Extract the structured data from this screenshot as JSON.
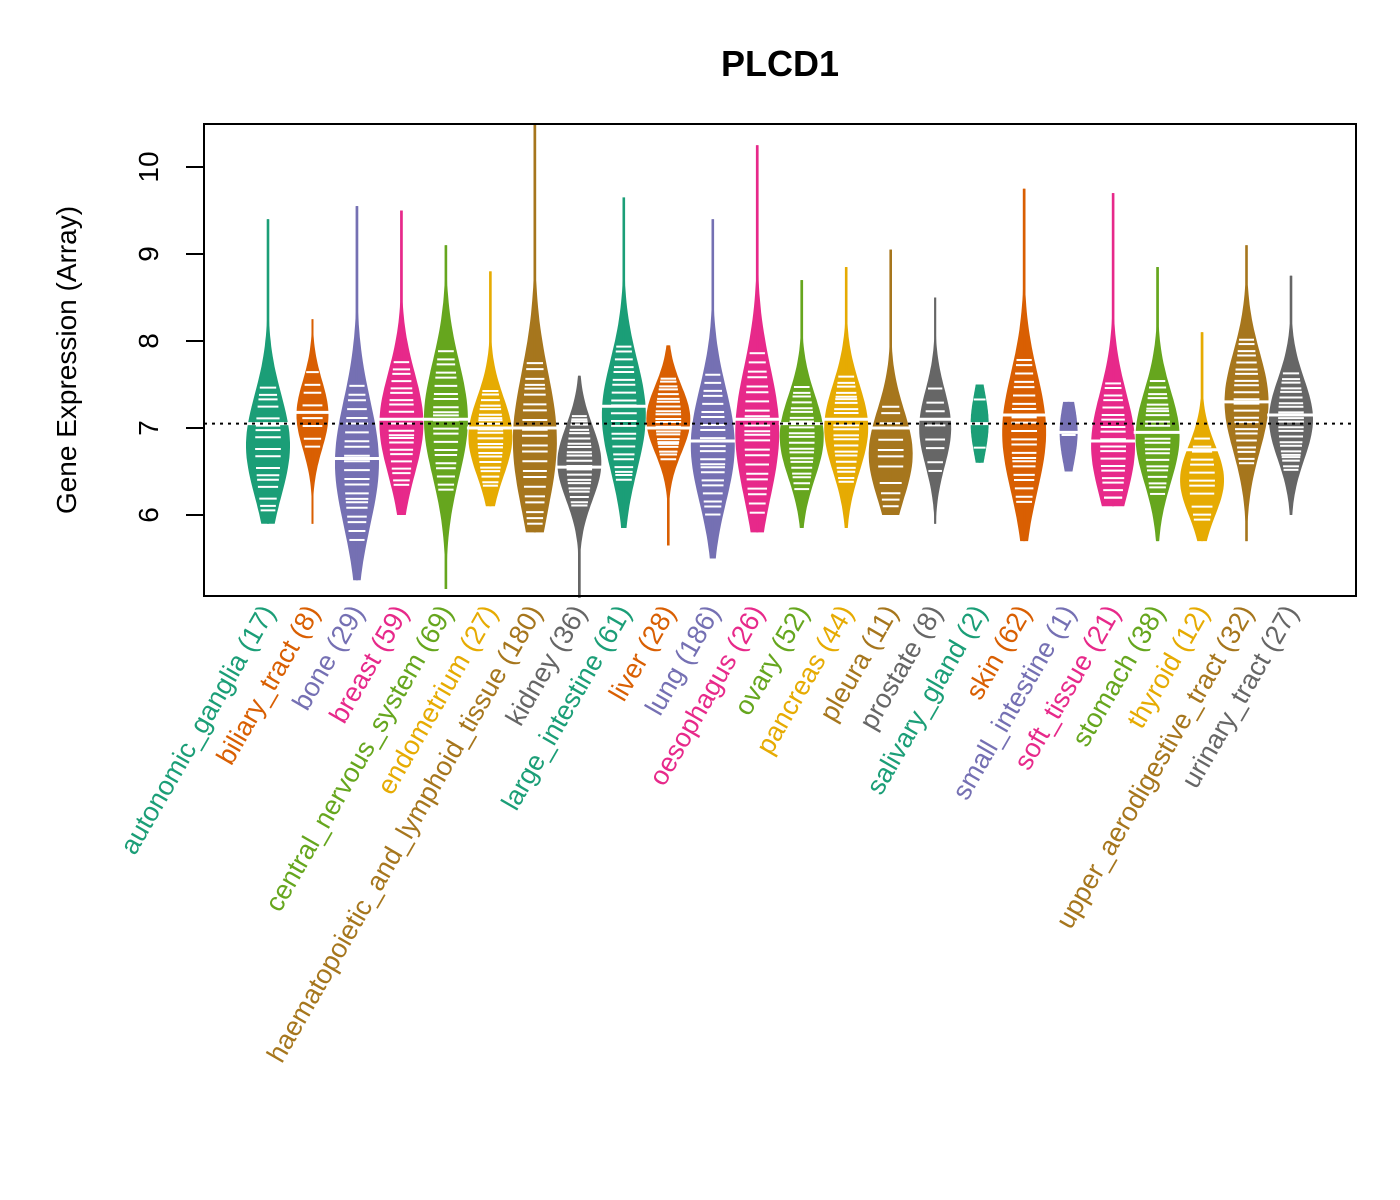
{
  "chart_data": {
    "type": "violin",
    "title": "PLCD1",
    "xlabel": "",
    "ylabel": "Gene Expression (Array)",
    "ylim": [
      5.05,
      10.5
    ],
    "yticks": [
      6,
      7,
      8,
      9,
      10
    ],
    "reference_line": 7.05,
    "grid": false,
    "legend": "none",
    "categories": [
      {
        "name": "autonomic_ganglia",
        "n": 17,
        "color": "#1B9E77",
        "median": 7.05,
        "min": 5.9,
        "max": 9.4,
        "mode": 6.8
      },
      {
        "name": "biliary_tract",
        "n": 8,
        "color": "#D95F02",
        "median": 7.18,
        "min": 5.9,
        "max": 8.25,
        "mode": 7.15
      },
      {
        "name": "bone",
        "n": 29,
        "color": "#7570B3",
        "median": 6.65,
        "min": 5.25,
        "max": 9.55,
        "mode": 6.6
      },
      {
        "name": "breast",
        "n": 59,
        "color": "#E7298A",
        "median": 7.1,
        "min": 6.0,
        "max": 9.5,
        "mode": 7.05
      },
      {
        "name": "central_nervous_system",
        "n": 69,
        "color": "#66A61E",
        "median": 7.1,
        "min": 5.15,
        "max": 9.1,
        "mode": 7.1
      },
      {
        "name": "endometrium",
        "n": 27,
        "color": "#E6AB02",
        "median": 7.0,
        "min": 6.1,
        "max": 8.8,
        "mode": 6.9
      },
      {
        "name": "haematopoietic_and_lymphoid_tissue",
        "n": 180,
        "color": "#A6761D",
        "median": 7.0,
        "min": 5.8,
        "max": 10.5,
        "mode": 6.85
      },
      {
        "name": "kidney",
        "n": 36,
        "color": "#666666",
        "median": 6.55,
        "min": 5.05,
        "max": 7.6,
        "mode": 6.6
      },
      {
        "name": "large_intestine",
        "n": 61,
        "color": "#1B9E77",
        "median": 7.25,
        "min": 5.85,
        "max": 9.65,
        "mode": 7.15
      },
      {
        "name": "liver",
        "n": 28,
        "color": "#D95F02",
        "median": 7.0,
        "min": 5.65,
        "max": 7.95,
        "mode": 7.1
      },
      {
        "name": "lung",
        "n": 186,
        "color": "#7570B3",
        "median": 6.85,
        "min": 5.5,
        "max": 9.4,
        "mode": 6.8
      },
      {
        "name": "oesophagus",
        "n": 26,
        "color": "#E7298A",
        "median": 7.1,
        "min": 5.8,
        "max": 10.25,
        "mode": 6.95
      },
      {
        "name": "ovary",
        "n": 52,
        "color": "#66A61E",
        "median": 7.05,
        "min": 5.85,
        "max": 8.7,
        "mode": 6.9
      },
      {
        "name": "pancreas",
        "n": 44,
        "color": "#E6AB02",
        "median": 7.1,
        "min": 5.85,
        "max": 8.85,
        "mode": 7.0
      },
      {
        "name": "pleura",
        "n": 11,
        "color": "#A6761D",
        "median": 7.0,
        "min": 6.0,
        "max": 9.05,
        "mode": 6.7
      },
      {
        "name": "prostate",
        "n": 8,
        "color": "#666666",
        "median": 7.1,
        "min": 5.9,
        "max": 8.5,
        "mode": 7.0
      },
      {
        "name": "salivary_gland",
        "n": 2,
        "color": "#1B9E77",
        "median": 7.05,
        "min": 6.6,
        "max": 7.5,
        "mode": 7.05
      },
      {
        "name": "skin",
        "n": 62,
        "color": "#D95F02",
        "median": 7.15,
        "min": 5.7,
        "max": 9.75,
        "mode": 6.95
      },
      {
        "name": "small_intestine",
        "n": 1,
        "color": "#7570B3",
        "median": 6.95,
        "min": 6.5,
        "max": 7.3,
        "mode": 6.95
      },
      {
        "name": "soft_tissue",
        "n": 21,
        "color": "#E7298A",
        "median": 6.85,
        "min": 6.1,
        "max": 9.7,
        "mode": 6.8
      },
      {
        "name": "stomach",
        "n": 38,
        "color": "#66A61E",
        "median": 6.95,
        "min": 5.7,
        "max": 8.85,
        "mode": 6.9
      },
      {
        "name": "thyroid",
        "n": 12,
        "color": "#E6AB02",
        "median": 6.75,
        "min": 5.7,
        "max": 8.1,
        "mode": 6.4
      },
      {
        "name": "upper_aerodigestive_tract",
        "n": 32,
        "color": "#A6761D",
        "median": 7.3,
        "min": 5.7,
        "max": 9.1,
        "mode": 7.3
      },
      {
        "name": "urinary_tract",
        "n": 27,
        "color": "#666666",
        "median": 7.15,
        "min": 6.0,
        "max": 8.75,
        "mode": 7.1
      }
    ]
  }
}
